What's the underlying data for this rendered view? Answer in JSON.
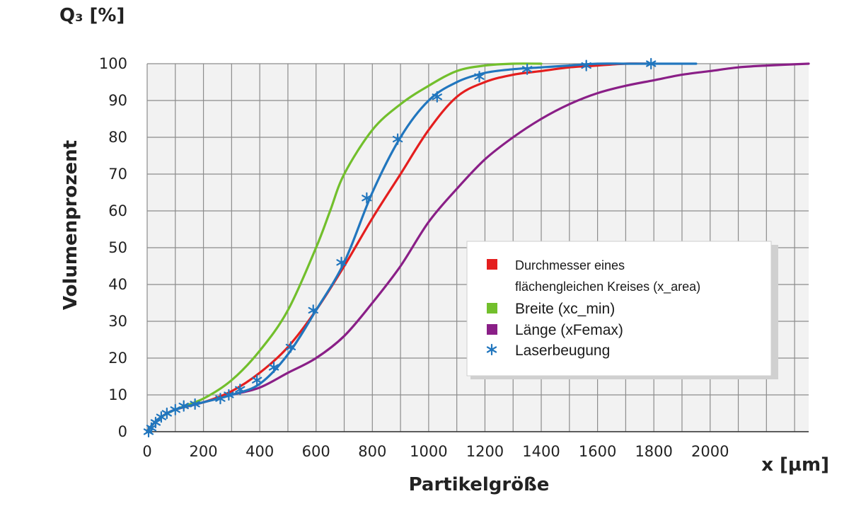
{
  "chart_data": {
    "type": "line",
    "y_unit_label": "Q₃ [%]",
    "ylabel": "Volumenprozent",
    "xlabel": "Partikelgröße",
    "x_unit_label": "x [µm]",
    "xlim": [
      0,
      2350
    ],
    "ylim": [
      0,
      100
    ],
    "x_ticks": [
      "0",
      "200",
      "400",
      "600",
      "800",
      "1000",
      "1200",
      "1400",
      "1600",
      "1800",
      "2000"
    ],
    "y_ticks": [
      "0",
      "10",
      "20",
      "30",
      "40",
      "50",
      "60",
      "70",
      "80",
      "90",
      "100"
    ],
    "grid": true,
    "legend_position": "right",
    "series": [
      {
        "name": "Durchmesser eines flächengleichen Kreises (x_area)",
        "legend_lines": [
          "Durchmesser eines",
          "flächengleichen Kreises (x_area)"
        ],
        "color": "#e41e1e",
        "marker": "none",
        "x": [
          0,
          20,
          50,
          100,
          200,
          300,
          400,
          500,
          600,
          700,
          800,
          900,
          1000,
          1100,
          1200,
          1300,
          1400,
          1500,
          1600,
          1700,
          1800
        ],
        "y": [
          0,
          2,
          4,
          6,
          8,
          11,
          16,
          23,
          33,
          45,
          58,
          70,
          82,
          91,
          95,
          97,
          98,
          99,
          99.5,
          100,
          100
        ]
      },
      {
        "name": "Breite (xc_min)",
        "color": "#72bf2c",
        "marker": "none",
        "x": [
          0,
          20,
          50,
          100,
          200,
          300,
          400,
          500,
          600,
          650,
          700,
          800,
          900,
          1000,
          1100,
          1200,
          1300,
          1400
        ],
        "y": [
          0,
          2,
          4,
          6,
          9,
          14,
          22,
          33,
          50,
          60,
          70,
          82,
          89,
          94,
          98,
          99.5,
          100,
          100
        ]
      },
      {
        "name": "Länge (xFemax)",
        "color": "#8a1f87",
        "marker": "none",
        "x": [
          0,
          20,
          50,
          100,
          200,
          300,
          400,
          500,
          600,
          700,
          800,
          900,
          1000,
          1100,
          1200,
          1300,
          1400,
          1500,
          1600,
          1700,
          1800,
          1900,
          2000,
          2100,
          2200,
          2350
        ],
        "y": [
          0,
          2,
          4,
          6,
          8,
          10,
          12,
          16,
          20,
          26,
          35,
          45,
          57,
          66,
          74,
          80,
          85,
          89,
          92,
          94,
          95.5,
          97,
          98,
          99,
          99.5,
          100
        ]
      },
      {
        "name": "Laserbeugung",
        "color": "#2176be",
        "marker": "asterisk",
        "x": [
          0,
          20,
          50,
          100,
          200,
          300,
          400,
          500,
          600,
          700,
          800,
          900,
          1000,
          1100,
          1200,
          1300,
          1400,
          1500,
          1600,
          1700,
          1800,
          1900,
          1950
        ],
        "y": [
          0,
          2,
          4,
          6,
          8,
          10,
          13,
          21,
          33,
          46,
          65,
          80,
          90,
          95,
          97.5,
          98.5,
          99,
          99.5,
          100,
          100,
          100,
          100,
          100
        ],
        "marker_points": [
          [
            5,
            0
          ],
          [
            15,
            1
          ],
          [
            30,
            2.5
          ],
          [
            50,
            4
          ],
          [
            70,
            5
          ],
          [
            100,
            6
          ],
          [
            130,
            7
          ],
          [
            170,
            7.5
          ],
          [
            260,
            9
          ],
          [
            290,
            10
          ],
          [
            330,
            11.5
          ],
          [
            390,
            14
          ],
          [
            450,
            17.5
          ],
          [
            510,
            23
          ],
          [
            590,
            33
          ],
          [
            690,
            46
          ],
          [
            780,
            63.5
          ],
          [
            890,
            79.5
          ],
          [
            1030,
            91
          ],
          [
            1180,
            96.5
          ],
          [
            1350,
            98.5
          ],
          [
            1560,
            99.5
          ],
          [
            1790,
            100
          ]
        ]
      }
    ]
  }
}
